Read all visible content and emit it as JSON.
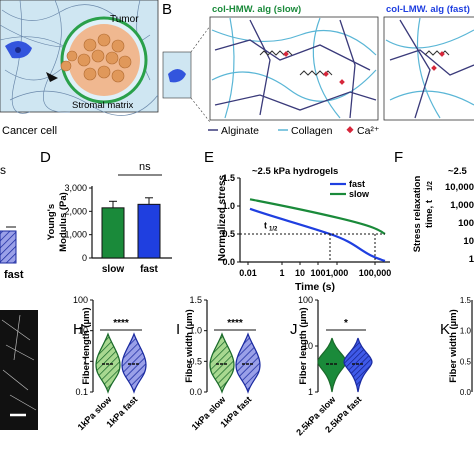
{
  "panels": {
    "A": {
      "tumor_label": "Tumor",
      "stroma_label": "Stromal matrix",
      "cancer_label": "Cancer cell"
    },
    "B": {
      "letter": "B",
      "left_title": "col-HMW. alg (slow)",
      "right_title": "col-LMW. alg (fast)",
      "legend": [
        {
          "name": "Alginate",
          "color": "#3a3a7a"
        },
        {
          "name": "Collagen",
          "color": "#5ab6d6"
        },
        {
          "name": "Ca²⁺",
          "color": "#d6263a"
        }
      ]
    },
    "C": {
      "ns": "s",
      "tick_fast": "fast"
    },
    "D": {
      "letter": "D",
      "ylabel_top": "Young's",
      "ylabel_bottom": "Modulus (Pa)",
      "ns": "ns",
      "yticks": [
        "0",
        "1,000",
        "2,000",
        "3,000"
      ],
      "categories": [
        "slow",
        "fast"
      ],
      "values": [
        2150,
        2300
      ],
      "errors": [
        280,
        280
      ],
      "ymax": 3000,
      "colors": [
        "#1a8a3a",
        "#1f3fe0"
      ]
    },
    "E": {
      "letter": "E",
      "title": "~2.5 kPa hydrogels",
      "ylabel": "Normalized stress",
      "xlabel": "Time (s)",
      "yticks": [
        "0.0",
        "0.5",
        "1.0",
        "1.5"
      ],
      "xticks": [
        "0.01",
        "1",
        "10",
        "100",
        "1,000",
        "100,000"
      ],
      "legend": [
        {
          "name": "fast",
          "color": "#1f3fe0"
        },
        {
          "name": "slow",
          "color": "#1a8a3a"
        }
      ],
      "annotation": "t",
      "annotation_sub": "1/2"
    },
    "F": {
      "letter": "F",
      "title": "~2.5",
      "ylabel_top": "Stress relaxation",
      "ylabel_bottom": "time, t",
      "ylabel_sub": "1/2",
      "yticks": [
        "10,000",
        "1,000",
        "100",
        "10",
        "1"
      ]
    },
    "H": {
      "letter": "H",
      "ylabel": "Fiber length (µm)",
      "sig": "****",
      "yticks": [
        "0.1",
        "1",
        "10",
        "100"
      ],
      "categories": [
        "1kPa slow",
        "1kPa fast"
      ]
    },
    "I": {
      "letter": "I",
      "ylabel": "Fiber width (µm)",
      "sig": "****",
      "yticks": [
        "0.0",
        "0.5",
        "1.0",
        "1.5"
      ],
      "categories": [
        "1kPa slow",
        "1kPa fast"
      ]
    },
    "J": {
      "letter": "J",
      "ylabel": "Fiber length (µm)",
      "sig": "*",
      "yticks": [
        "1",
        "10",
        "100"
      ],
      "categories": [
        "2.5kPa slow",
        "2.5kPa fast"
      ]
    },
    "K": {
      "letter": "K",
      "ylabel": "Fiber width (µm)",
      "yticks": [
        "1.5",
        "1.0",
        "0.5",
        "0.0"
      ]
    }
  }
}
